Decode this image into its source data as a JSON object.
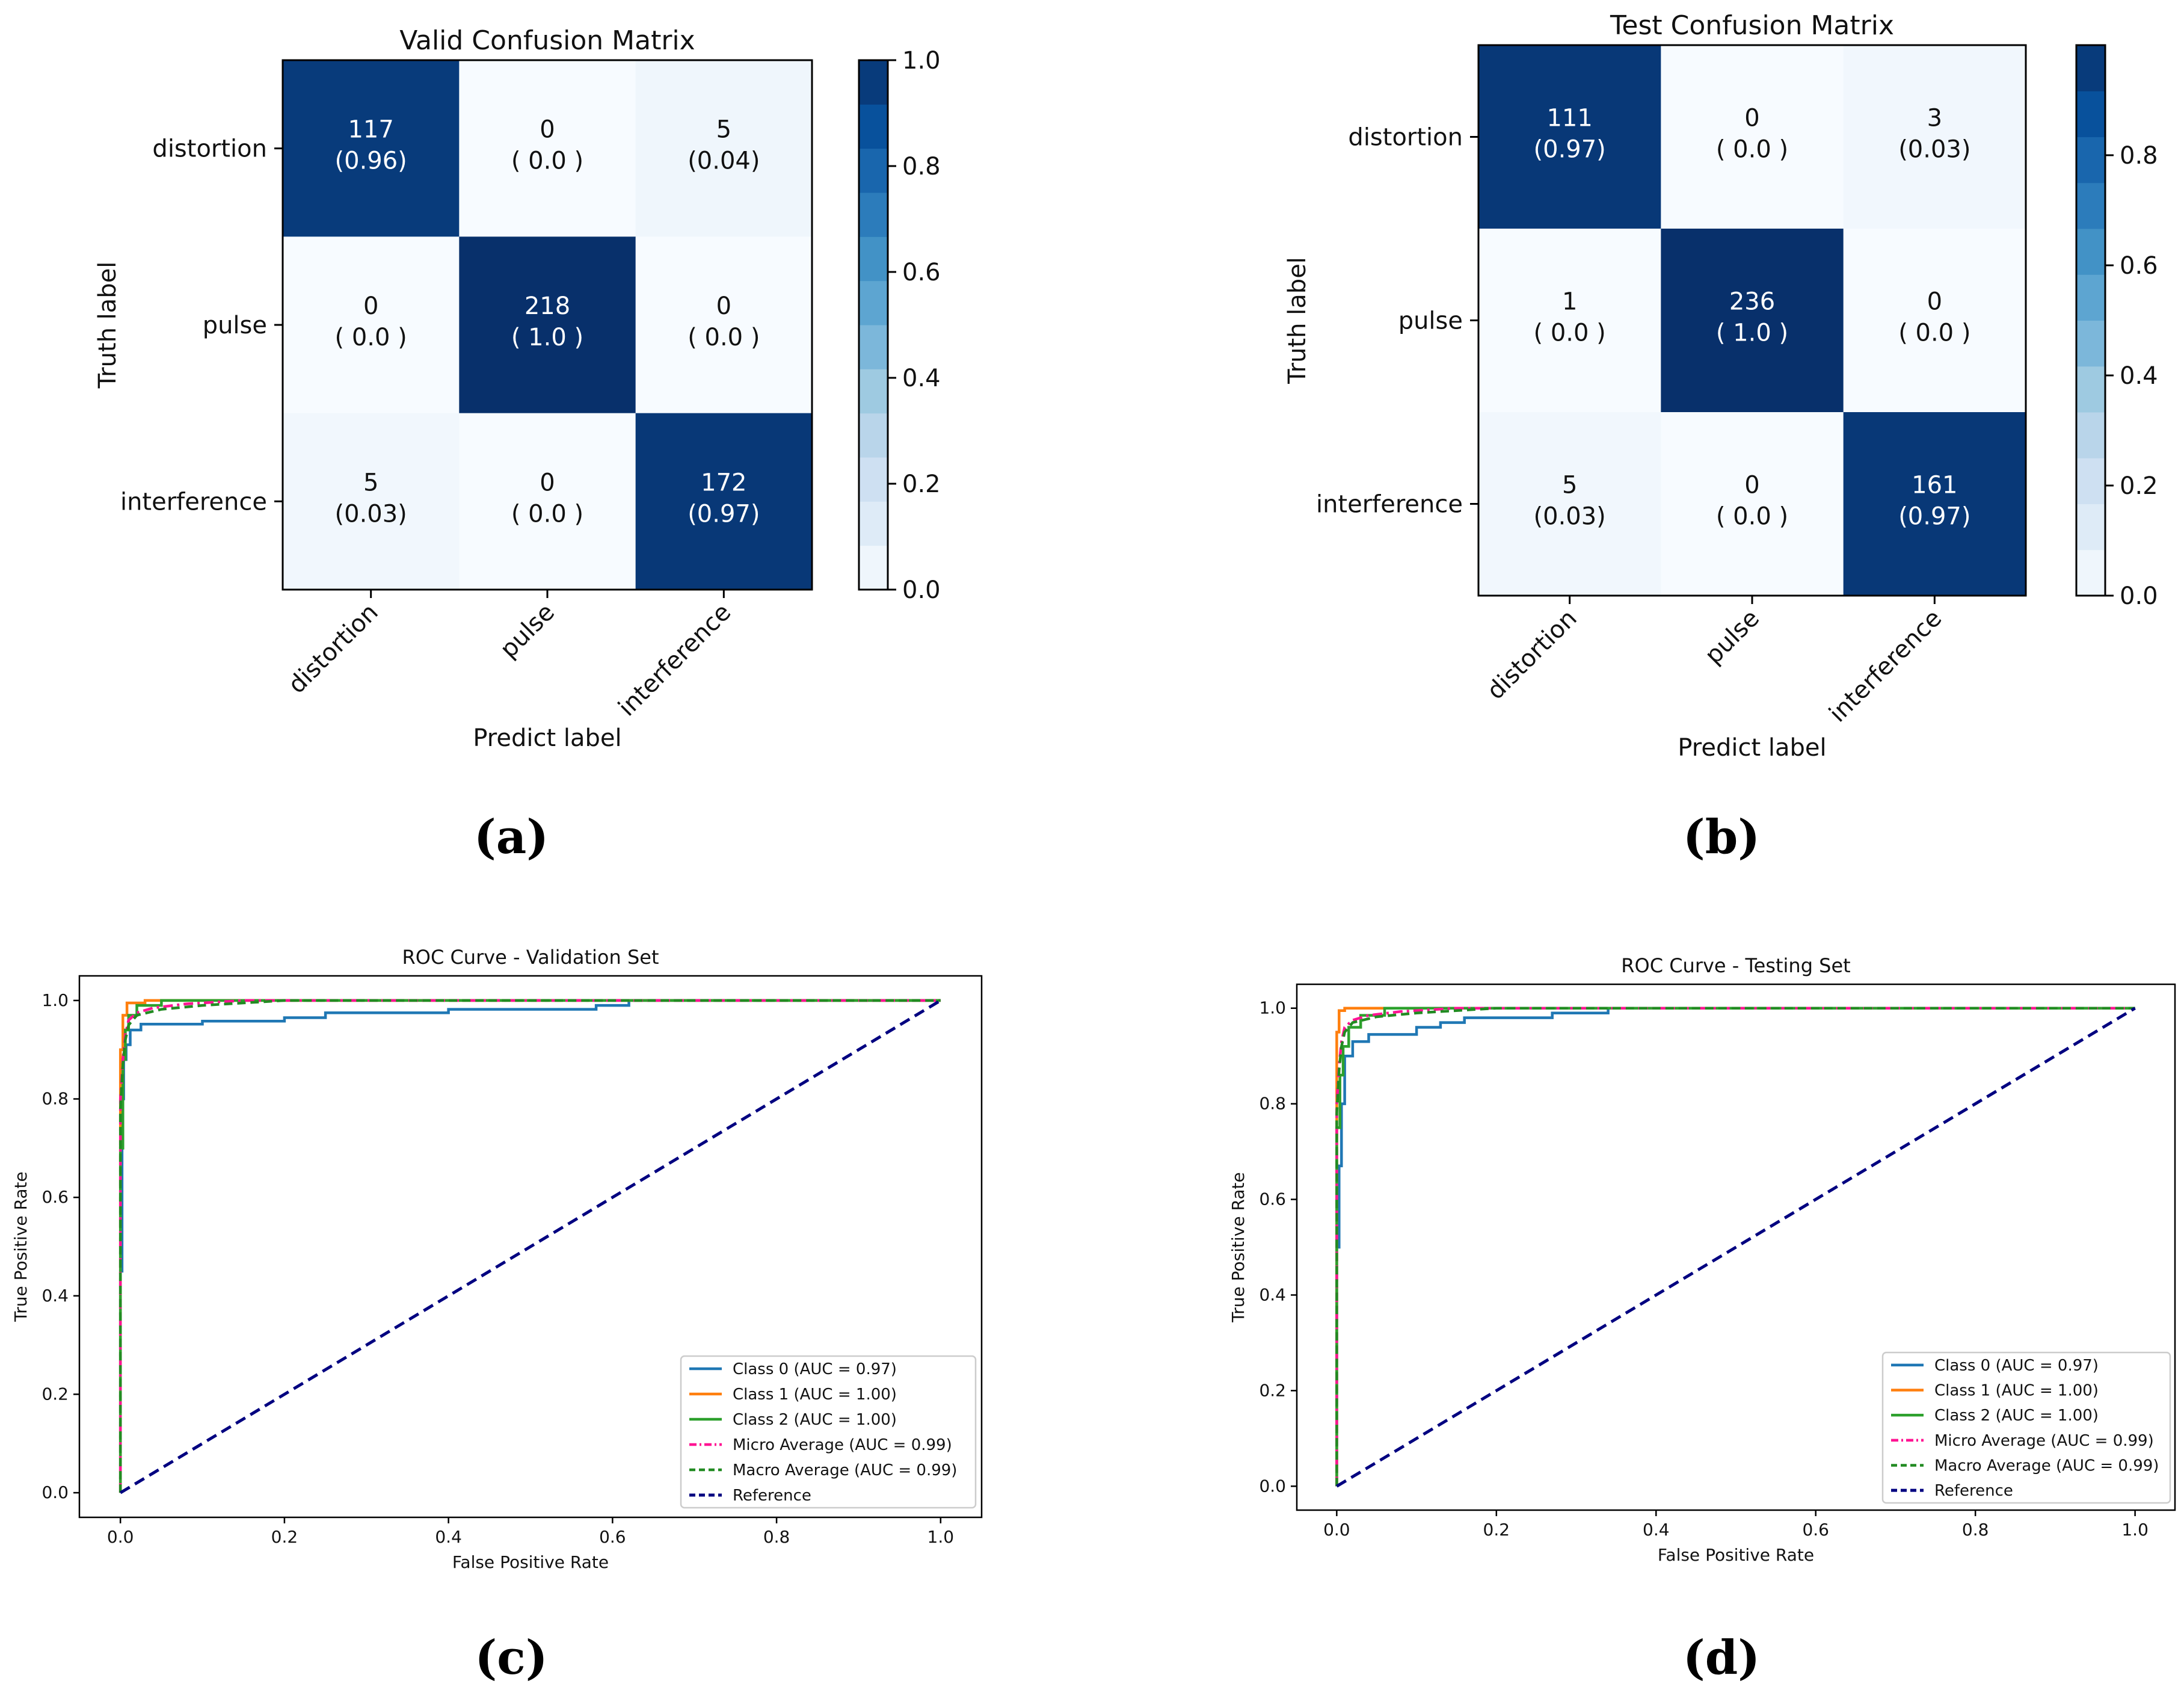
{
  "panel_labels": [
    "(a)",
    "(b)",
    "(c)",
    "(d)"
  ],
  "chart_data": [
    {
      "type": "heatmap",
      "title": "Valid Confusion Matrix",
      "xlabel": "Predict label",
      "ylabel": "Truth label",
      "x_categories": [
        "distortion",
        "pulse",
        "interference"
      ],
      "y_categories": [
        "distortion",
        "pulse",
        "interference"
      ],
      "counts": [
        [
          117,
          0,
          5
        ],
        [
          0,
          218,
          0
        ],
        [
          5,
          0,
          172
        ]
      ],
      "fractions": [
        [
          "(0.96)",
          "( 0.0 )",
          "(0.04)"
        ],
        [
          "( 0.0 )",
          "( 1.0 )",
          "( 0.0 )"
        ],
        [
          "(0.03)",
          "( 0.0 )",
          "(0.97)"
        ]
      ],
      "fraction_values": [
        [
          0.96,
          0.0,
          0.04
        ],
        [
          0.0,
          1.0,
          0.0
        ],
        [
          0.03,
          0.0,
          0.97
        ]
      ],
      "colorbar": {
        "min": 0,
        "max": 1.0,
        "ticks": [
          0.0,
          0.2,
          0.4,
          0.6,
          0.8,
          1.0
        ],
        "tick_labels": [
          "0.0",
          "0.2",
          "0.4",
          "0.6",
          "0.8",
          "1.0"
        ]
      },
      "colormap": "Blues"
    },
    {
      "type": "heatmap",
      "title": "Test Confusion Matrix",
      "xlabel": "Predict label",
      "ylabel": "Truth label",
      "x_categories": [
        "distortion",
        "pulse",
        "interference"
      ],
      "y_categories": [
        "distortion",
        "pulse",
        "interference"
      ],
      "counts": [
        [
          111,
          0,
          3
        ],
        [
          1,
          236,
          0
        ],
        [
          5,
          0,
          161
        ]
      ],
      "fractions": [
        [
          "(0.97)",
          "( 0.0 )",
          "(0.03)"
        ],
        [
          "( 0.0 )",
          "( 1.0 )",
          "( 0.0 )"
        ],
        [
          "(0.03)",
          "( 0.0 )",
          "(0.97)"
        ]
      ],
      "fraction_values": [
        [
          0.97,
          0.0,
          0.03
        ],
        [
          0.0,
          1.0,
          0.0
        ],
        [
          0.03,
          0.0,
          0.97
        ]
      ],
      "colorbar": {
        "min": 0,
        "max": 1.0,
        "ticks": [
          0.0,
          0.2,
          0.4,
          0.6,
          0.8
        ],
        "tick_labels": [
          "0.0",
          "0.2",
          "0.4",
          "0.6",
          "0.8"
        ]
      },
      "colormap": "Blues"
    },
    {
      "type": "line",
      "title": "ROC Curve - Validation Set",
      "xlabel": "False Positive Rate",
      "ylabel": "True Positive Rate",
      "xlim": [
        -0.05,
        1.05
      ],
      "ylim": [
        -0.05,
        1.05
      ],
      "xticks": [
        0.0,
        0.2,
        0.4,
        0.6,
        0.8,
        1.0
      ],
      "xtick_labels": [
        "0.0",
        "0.2",
        "0.4",
        "0.6",
        "0.8",
        "1.0"
      ],
      "yticks": [
        0.0,
        0.2,
        0.4,
        0.6,
        0.8,
        1.0
      ],
      "ytick_labels": [
        "0.0",
        "0.2",
        "0.4",
        "0.6",
        "0.8",
        "1.0"
      ],
      "legend_position": "lower-right",
      "series": [
        {
          "name": "Class 0 (AUC = 0.97)",
          "color": "#1f77b4",
          "style": "solid",
          "x": [
            0,
            0,
            0.002,
            0.002,
            0.004,
            0.004,
            0.007,
            0.007,
            0.012,
            0.012,
            0.025,
            0.025,
            0.1,
            0.1,
            0.2,
            0.2,
            0.25,
            0.25,
            0.4,
            0.4,
            0.58,
            0.58,
            0.62,
            0.62,
            1.0
          ],
          "y": [
            0,
            0.45,
            0.45,
            0.8,
            0.8,
            0.88,
            0.88,
            0.91,
            0.91,
            0.94,
            0.94,
            0.952,
            0.952,
            0.958,
            0.958,
            0.965,
            0.965,
            0.975,
            0.975,
            0.982,
            0.982,
            0.99,
            0.99,
            1.0,
            1.0
          ]
        },
        {
          "name": "Class 1 (AUC = 1.00)",
          "color": "#ff7f0e",
          "style": "solid",
          "x": [
            0,
            0,
            0.003,
            0.003,
            0.008,
            0.008,
            0.03,
            0.03,
            1.0
          ],
          "y": [
            0,
            0.9,
            0.9,
            0.97,
            0.97,
            0.995,
            0.995,
            1.0,
            1.0
          ]
        },
        {
          "name": "Class 2 (AUC = 1.00)",
          "color": "#2ca02c",
          "style": "solid",
          "x": [
            0,
            0,
            0.003,
            0.003,
            0.006,
            0.006,
            0.01,
            0.01,
            0.02,
            0.02,
            0.05,
            0.05,
            1.0
          ],
          "y": [
            0,
            0.7,
            0.7,
            0.88,
            0.88,
            0.94,
            0.94,
            0.97,
            0.97,
            0.99,
            0.99,
            1.0,
            1.0
          ]
        },
        {
          "name": "Micro Average (AUC = 0.99)",
          "color": "#ff1493",
          "style": "dashdot",
          "x": [
            0,
            0,
            0.003,
            0.006,
            0.01,
            0.02,
            0.04,
            0.08,
            0.15,
            1.0
          ],
          "y": [
            0,
            0.8,
            0.88,
            0.93,
            0.96,
            0.975,
            0.985,
            0.993,
            1.0,
            1.0
          ]
        },
        {
          "name": "Macro Average (AUC = 0.99)",
          "color": "#228b22",
          "style": "dashed",
          "x": [
            0,
            0,
            0.003,
            0.006,
            0.01,
            0.02,
            0.05,
            0.1,
            0.2,
            1.0
          ],
          "y": [
            0,
            0.78,
            0.87,
            0.92,
            0.95,
            0.97,
            0.982,
            0.99,
            1.0,
            1.0
          ]
        },
        {
          "name": "Reference",
          "color": "#000080",
          "style": "dashed-thick",
          "x": [
            0,
            1
          ],
          "y": [
            0,
            1
          ]
        }
      ]
    },
    {
      "type": "line",
      "title": "ROC Curve - Testing Set",
      "xlabel": "False Positive Rate",
      "ylabel": "True Positive Rate",
      "xlim": [
        -0.05,
        1.05
      ],
      "ylim": [
        -0.05,
        1.05
      ],
      "xticks": [
        0.0,
        0.2,
        0.4,
        0.6,
        0.8,
        1.0
      ],
      "xtick_labels": [
        "0.0",
        "0.2",
        "0.4",
        "0.6",
        "0.8",
        "1.0"
      ],
      "yticks": [
        0.0,
        0.2,
        0.4,
        0.6,
        0.8,
        1.0
      ],
      "ytick_labels": [
        "0.0",
        "0.2",
        "0.4",
        "0.6",
        "0.8",
        "1.0"
      ],
      "legend_position": "lower-right",
      "series": [
        {
          "name": "Class 0 (AUC = 0.97)",
          "color": "#1f77b4",
          "style": "solid",
          "x": [
            0,
            0,
            0.003,
            0.003,
            0.006,
            0.006,
            0.01,
            0.01,
            0.02,
            0.02,
            0.04,
            0.04,
            0.1,
            0.1,
            0.13,
            0.13,
            0.16,
            0.16,
            0.27,
            0.27,
            0.34,
            0.34,
            1.0
          ],
          "y": [
            0,
            0.5,
            0.5,
            0.67,
            0.67,
            0.8,
            0.8,
            0.9,
            0.9,
            0.93,
            0.93,
            0.945,
            0.945,
            0.96,
            0.96,
            0.97,
            0.97,
            0.98,
            0.98,
            0.99,
            0.99,
            1.0,
            1.0
          ]
        },
        {
          "name": "Class 1 (AUC = 1.00)",
          "color": "#ff7f0e",
          "style": "solid",
          "x": [
            0,
            0,
            0.003,
            0.003,
            0.01,
            0.01,
            1.0
          ],
          "y": [
            0,
            0.95,
            0.95,
            0.995,
            0.995,
            1.0,
            1.0
          ]
        },
        {
          "name": "Class 2 (AUC = 1.00)",
          "color": "#2ca02c",
          "style": "solid",
          "x": [
            0,
            0,
            0.004,
            0.004,
            0.008,
            0.008,
            0.015,
            0.015,
            0.03,
            0.03,
            0.06,
            0.06,
            1.0
          ],
          "y": [
            0,
            0.75,
            0.75,
            0.86,
            0.86,
            0.92,
            0.92,
            0.96,
            0.96,
            0.985,
            0.985,
            1.0,
            1.0
          ]
        },
        {
          "name": "Micro Average (AUC = 0.99)",
          "color": "#ff1493",
          "style": "dashdot",
          "x": [
            0,
            0,
            0.003,
            0.006,
            0.01,
            0.02,
            0.04,
            0.08,
            0.15,
            1.0
          ],
          "y": [
            0,
            0.8,
            0.88,
            0.93,
            0.96,
            0.975,
            0.985,
            0.993,
            1.0,
            1.0
          ]
        },
        {
          "name": "Macro Average (AUC = 0.99)",
          "color": "#228b22",
          "style": "dashed",
          "x": [
            0,
            0,
            0.003,
            0.006,
            0.01,
            0.02,
            0.05,
            0.1,
            0.2,
            1.0
          ],
          "y": [
            0,
            0.78,
            0.87,
            0.92,
            0.95,
            0.97,
            0.982,
            0.99,
            1.0,
            1.0
          ]
        },
        {
          "name": "Reference",
          "color": "#000080",
          "style": "dashed-thick",
          "x": [
            0,
            1
          ],
          "y": [
            0,
            1
          ]
        }
      ]
    }
  ]
}
